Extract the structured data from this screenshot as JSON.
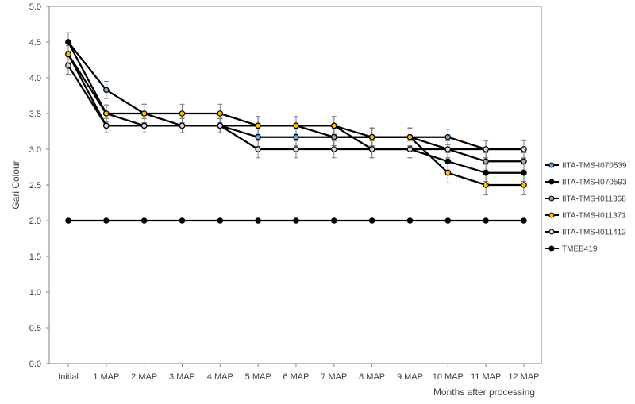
{
  "chart_data": {
    "type": "line",
    "title": "",
    "xlabel": "Months after processing",
    "ylabel": "Gari Colour",
    "categories": [
      "Initial",
      "1 MAP",
      "2 MAP",
      "3 MAP",
      "4 MAP",
      "5 MAP",
      "6 MAP",
      "7 MAP",
      "8 MAP",
      "9 MAP",
      "10 MAP",
      "11 MAP",
      "12 MAP"
    ],
    "ylim": [
      0,
      5
    ],
    "yticks": [
      "0.0",
      "0.5",
      "1.0",
      "1.5",
      "2.0",
      "2.5",
      "3.0",
      "3.5",
      "4.0",
      "4.5",
      "5.0"
    ],
    "grid": false,
    "legend_position": "right",
    "error_bars": true,
    "series": [
      {
        "name": "IITA-TMS-I070539",
        "marker_color": "#6fa8dc",
        "values": [
          4.5,
          3.83,
          3.5,
          3.33,
          3.33,
          3.17,
          3.17,
          3.17,
          3.17,
          3.17,
          3.17,
          3.0,
          3.0
        ],
        "errors": [
          0.13,
          0.12,
          0.13,
          0.1,
          0.1,
          0.13,
          0.12,
          0.12,
          0.12,
          0.12,
          0.11,
          0.12,
          0.13
        ]
      },
      {
        "name": "IITA-TMS-I070593",
        "marker_color": "#000000",
        "values": [
          4.5,
          3.5,
          3.33,
          3.33,
          3.33,
          3.33,
          3.33,
          3.33,
          3.0,
          3.0,
          2.83,
          2.67,
          2.67
        ],
        "errors": [
          0.13,
          0.12,
          0.1,
          0.1,
          0.1,
          0.12,
          0.12,
          0.12,
          0.12,
          0.12,
          0.12,
          0.12,
          0.12
        ]
      },
      {
        "name": "IITA-TMS-I011368",
        "marker_color": "#a6a6a6",
        "values": [
          4.33,
          3.33,
          3.33,
          3.33,
          3.33,
          3.33,
          3.33,
          3.17,
          3.17,
          3.17,
          3.0,
          2.83,
          2.83
        ],
        "errors": [
          0.12,
          0.1,
          0.1,
          0.1,
          0.1,
          0.12,
          0.12,
          0.12,
          0.12,
          0.12,
          0.12,
          0.12,
          0.12
        ]
      },
      {
        "name": "IITA-TMS-I011371",
        "marker_color": "#ffc000",
        "values": [
          4.33,
          3.5,
          3.5,
          3.5,
          3.5,
          3.33,
          3.33,
          3.33,
          3.17,
          3.17,
          2.67,
          2.5,
          2.5
        ],
        "errors": [
          0.12,
          0.12,
          0.13,
          0.13,
          0.13,
          0.13,
          0.13,
          0.13,
          0.13,
          0.13,
          0.14,
          0.14,
          0.14
        ]
      },
      {
        "name": "IITA-TMS-I011412",
        "marker_color": "#d9d9d9",
        "values": [
          4.17,
          3.33,
          3.33,
          3.33,
          3.33,
          3.0,
          3.0,
          3.0,
          3.0,
          3.0,
          3.0,
          3.0,
          3.0
        ],
        "errors": [
          0.12,
          0.1,
          0.1,
          0.1,
          0.1,
          0.12,
          0.12,
          0.12,
          0.12,
          0.12,
          0.12,
          0.12,
          0.12
        ]
      },
      {
        "name": "TMEB419",
        "marker_color": "#000000",
        "values": [
          2.0,
          2.0,
          2.0,
          2.0,
          2.0,
          2.0,
          2.0,
          2.0,
          2.0,
          2.0,
          2.0,
          2.0,
          2.0
        ],
        "errors": null
      }
    ]
  }
}
